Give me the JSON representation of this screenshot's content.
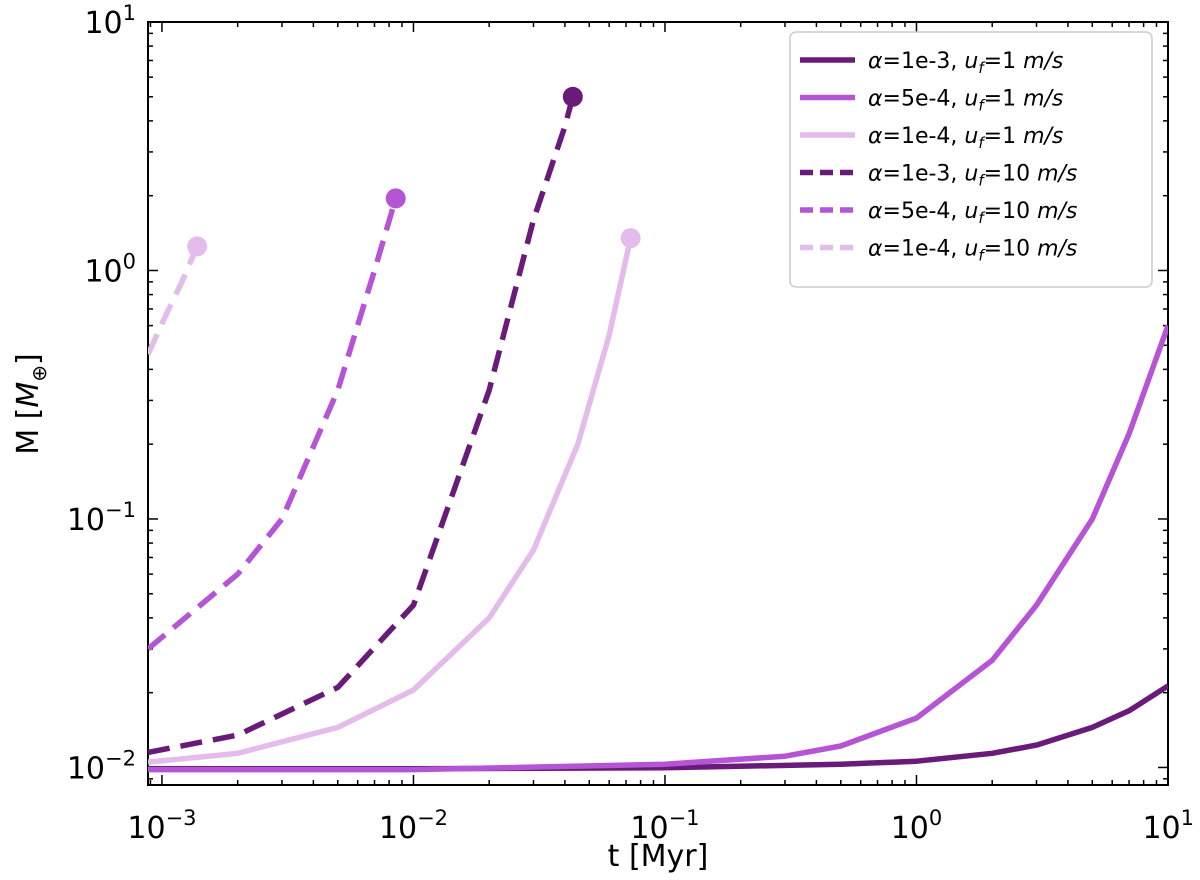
{
  "chart_data": {
    "type": "line",
    "xscale": "log",
    "yscale": "log",
    "xlim": [
      0.00088,
      10
    ],
    "ylim": [
      0.0085,
      10
    ],
    "xlabel": "t [Myr]",
    "ylabel_main": "M [",
    "ylabel_sym": "M",
    "ylabel_sub": "⊕",
    "ylabel_close": "]",
    "x_ticks": [
      {
        "base": "10",
        "exp": "−3",
        "value": 0.001
      },
      {
        "base": "10",
        "exp": "−2",
        "value": 0.01
      },
      {
        "base": "10",
        "exp": "−1",
        "value": 0.1
      },
      {
        "base": "10",
        "exp": "0",
        "value": 1
      },
      {
        "base": "10",
        "exp": "1",
        "value": 10
      }
    ],
    "y_ticks": [
      {
        "base": "10",
        "exp": "−2",
        "value": 0.01
      },
      {
        "base": "10",
        "exp": "−1",
        "value": 0.1
      },
      {
        "base": "10",
        "exp": "0",
        "value": 1
      },
      {
        "base": "10",
        "exp": "1",
        "value": 10
      }
    ],
    "legend_position": "top-right",
    "series": [
      {
        "alpha": "1e-3",
        "uf": "1",
        "color": "#6a1b7a",
        "style": "solid",
        "end_marker": false,
        "x": [
          0.00088,
          0.01,
          0.1,
          0.5,
          1,
          2,
          3,
          5,
          7,
          10
        ],
        "y": [
          0.00988,
          0.00989,
          0.00998,
          0.0103,
          0.0106,
          0.0114,
          0.0123,
          0.0145,
          0.0169,
          0.0213
        ]
      },
      {
        "alpha": "5e-4",
        "uf": "1",
        "color": "#b554d4",
        "style": "solid",
        "end_marker": false,
        "x": [
          0.00088,
          0.01,
          0.1,
          0.3,
          0.5,
          1,
          2,
          3,
          5,
          7,
          10
        ],
        "y": [
          0.0098,
          0.0098,
          0.0103,
          0.0111,
          0.0122,
          0.0158,
          0.027,
          0.045,
          0.1,
          0.22,
          0.6
        ]
      },
      {
        "alpha": "1e-4",
        "uf": "1",
        "color": "#e4bceb",
        "style": "solid",
        "end_marker": true,
        "x": [
          0.00088,
          0.002,
          0.005,
          0.01,
          0.02,
          0.03,
          0.045,
          0.06,
          0.073
        ],
        "y": [
          0.0105,
          0.0114,
          0.0145,
          0.0205,
          0.04,
          0.075,
          0.2,
          0.55,
          1.35
        ]
      },
      {
        "alpha": "1e-3",
        "uf": "10",
        "color": "#6a1b7a",
        "style": "dashed",
        "end_marker": true,
        "x": [
          0.00088,
          0.002,
          0.005,
          0.01,
          0.02,
          0.03,
          0.04,
          0.043
        ],
        "y": [
          0.0115,
          0.0135,
          0.021,
          0.045,
          0.33,
          1.6,
          3.8,
          5.0
        ]
      },
      {
        "alpha": "5e-4",
        "uf": "10",
        "color": "#b554d4",
        "style": "dashed",
        "end_marker": true,
        "x": [
          0.00088,
          0.002,
          0.003,
          0.005,
          0.007,
          0.0085
        ],
        "y": [
          0.03,
          0.06,
          0.1,
          0.33,
          1.0,
          1.95
        ]
      },
      {
        "alpha": "1e-4",
        "uf": "10",
        "color": "#e4bceb",
        "style": "dashed",
        "end_marker": true,
        "x": [
          0.00088,
          0.00105,
          0.0012,
          0.00138
        ],
        "y": [
          0.46,
          0.68,
          0.9,
          1.25
        ]
      }
    ],
    "legend_labels": [
      {
        "a_sym": "α",
        "a_val": "=1e-3, ",
        "u_sym": "u",
        "u_sub": "f",
        "u_val": "=1 ",
        "unit": "m/s"
      },
      {
        "a_sym": "α",
        "a_val": "=5e-4, ",
        "u_sym": "u",
        "u_sub": "f",
        "u_val": "=1 ",
        "unit": "m/s"
      },
      {
        "a_sym": "α",
        "a_val": "=1e-4, ",
        "u_sym": "u",
        "u_sub": "f",
        "u_val": "=1 ",
        "unit": "m/s"
      },
      {
        "a_sym": "α",
        "a_val": "=1e-3, ",
        "u_sym": "u",
        "u_sub": "f",
        "u_val": "=10 ",
        "unit": "m/s"
      },
      {
        "a_sym": "α",
        "a_val": "=5e-4, ",
        "u_sym": "u",
        "u_sub": "f",
        "u_val": "=10 ",
        "unit": "m/s"
      },
      {
        "a_sym": "α",
        "a_val": "=1e-4, ",
        "u_sym": "u",
        "u_sub": "f",
        "u_val": "=10 ",
        "unit": "m/s"
      }
    ]
  }
}
